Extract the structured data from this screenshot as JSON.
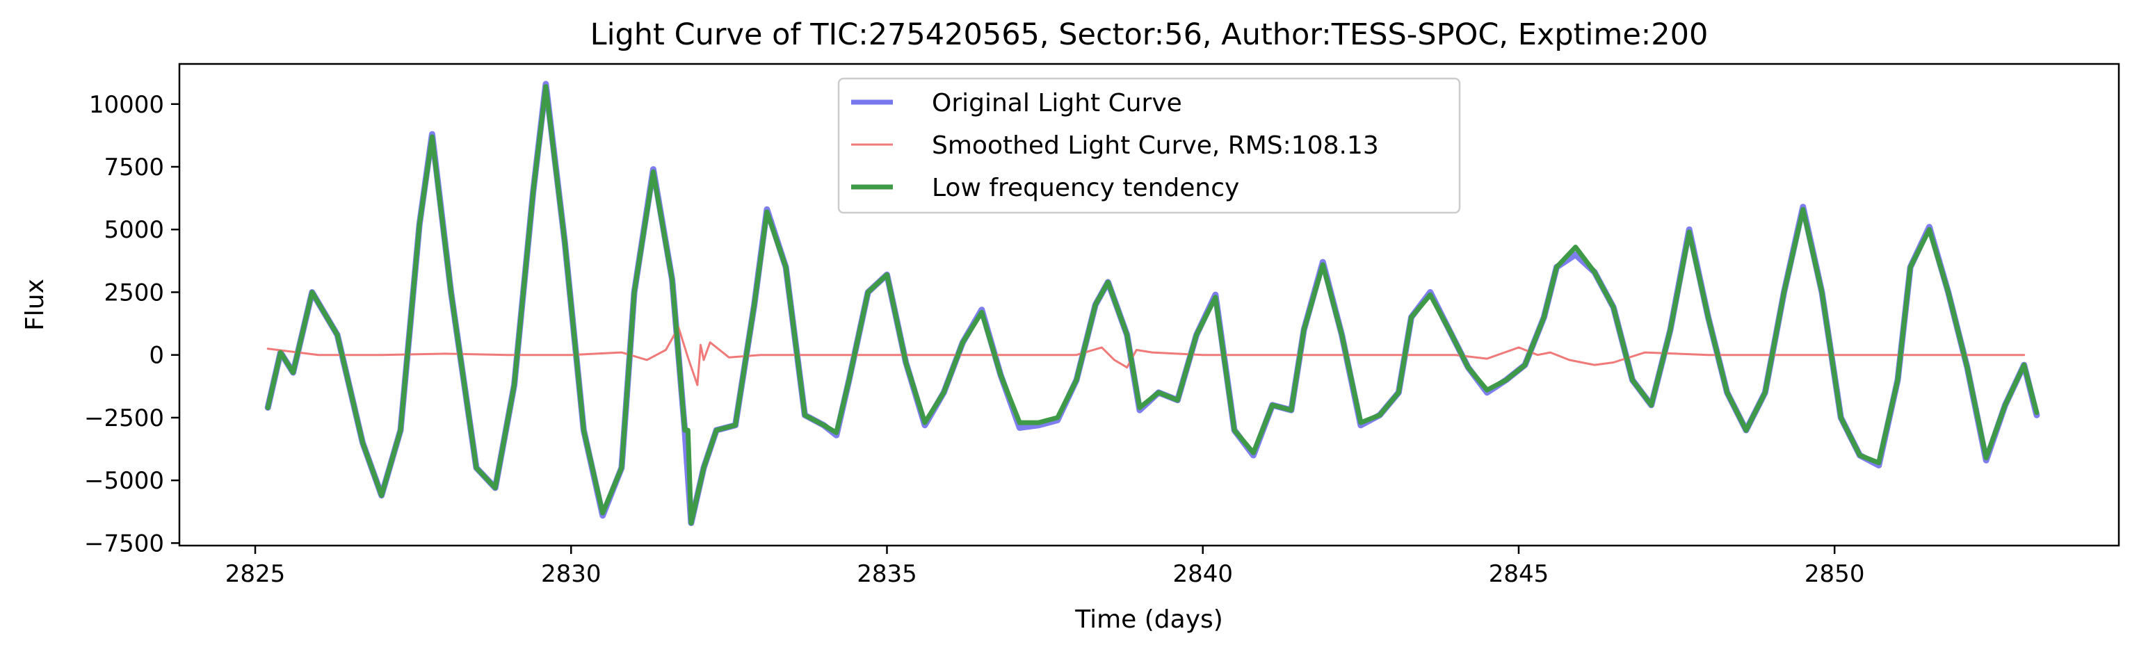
{
  "chart_data": {
    "type": "line",
    "title": "Light Curve of TIC:275420565, Sector:56, Author:TESS-SPOC, Exptime:200",
    "xlabel": "Time (days)",
    "ylabel": "Flux",
    "xlim": [
      2823.8,
      2854.5
    ],
    "ylim": [
      -7600,
      11600
    ],
    "xticks": [
      2825,
      2830,
      2835,
      2840,
      2845,
      2850
    ],
    "yticks": [
      -7500,
      -5000,
      -2500,
      0,
      2500,
      5000,
      7500,
      10000
    ],
    "grid": false,
    "legend_position": "upper-center",
    "colors": {
      "original": "#7777ee",
      "smoothed": "#f07a7a",
      "tendency": "#3f9a48"
    },
    "series": [
      {
        "name": "Original Light Curve",
        "x": [
          2825.2,
          2825.4,
          2825.6,
          2825.9,
          2826.3,
          2826.7,
          2827.0,
          2827.3,
          2827.6,
          2827.8,
          2828.1,
          2828.5,
          2828.8,
          2829.1,
          2829.4,
          2829.6,
          2829.9,
          2830.2,
          2830.5,
          2830.8,
          2831.0,
          2831.3,
          2831.6,
          2831.8,
          2831.9,
          2832.1,
          2832.3,
          2832.6,
          2832.9,
          2833.1,
          2833.4,
          2833.7,
          2834.0,
          2834.2,
          2834.4,
          2834.7,
          2835.0,
          2835.3,
          2835.6,
          2835.9,
          2836.2,
          2836.5,
          2836.8,
          2837.1,
          2837.4,
          2837.7,
          2838.0,
          2838.3,
          2838.5,
          2838.8,
          2839.0,
          2839.3,
          2839.6,
          2839.9,
          2840.2,
          2840.5,
          2840.8,
          2841.1,
          2841.4,
          2841.6,
          2841.9,
          2842.2,
          2842.5,
          2842.8,
          2843.1,
          2843.3,
          2843.6,
          2843.9,
          2844.2,
          2844.5,
          2844.8,
          2845.1,
          2845.4,
          2845.6,
          2845.9,
          2846.2,
          2846.5,
          2846.8,
          2847.1,
          2847.4,
          2847.7,
          2848.0,
          2848.3,
          2848.6,
          2848.9,
          2849.2,
          2849.5,
          2849.8,
          2850.1,
          2850.4,
          2850.7,
          2851.0,
          2851.2,
          2851.5,
          2851.8,
          2852.1,
          2852.4,
          2852.7,
          2853.0,
          2853.2
        ],
        "y": [
          -2100,
          100,
          -700,
          2500,
          800,
          -3500,
          -5600,
          -3000,
          5200,
          8800,
          2500,
          -4500,
          -5300,
          -1200,
          6500,
          10800,
          4500,
          -3000,
          -6400,
          -4500,
          2500,
          7400,
          3000,
          -3000,
          -6700,
          -4500,
          -3000,
          -2800,
          2000,
          5800,
          3500,
          -2400,
          -2800,
          -3200,
          -1000,
          2500,
          3200,
          -300,
          -2800,
          -1500,
          500,
          1800,
          -800,
          -2900,
          -2800,
          -2600,
          -1000,
          2000,
          2900,
          800,
          -2200,
          -1500,
          -1800,
          800,
          2400,
          -3000,
          -4000,
          -2000,
          -2200,
          1000,
          3700,
          800,
          -2800,
          -2400,
          -1500,
          1500,
          2500,
          1000,
          -500,
          -1500,
          -1000,
          -400,
          1500,
          3500,
          4000,
          3300,
          1900,
          -1000,
          -2000,
          1000,
          5000,
          1500,
          -1500,
          -3000,
          -1500,
          2500,
          5900,
          2500,
          -2500,
          -4000,
          -4400,
          -1000,
          3500,
          5100,
          2500,
          -500,
          -4200,
          -2000,
          -400,
          -2400
        ]
      },
      {
        "name": "Smoothed Light Curve, RMS:108.13",
        "x": [
          2825.2,
          2826.0,
          2827.0,
          2828.0,
          2829.0,
          2830.0,
          2830.8,
          2831.2,
          2831.5,
          2831.7,
          2831.85,
          2832.0,
          2832.05,
          2832.1,
          2832.2,
          2832.5,
          2833.0,
          2834.0,
          2835.0,
          2836.0,
          2837.0,
          2838.0,
          2838.4,
          2838.6,
          2838.8,
          2838.95,
          2839.2,
          2840.0,
          2841.0,
          2842.0,
          2843.0,
          2844.0,
          2844.5,
          2845.0,
          2845.3,
          2845.5,
          2845.8,
          2846.2,
          2846.5,
          2847.0,
          2848.0,
          2849.0,
          2850.0,
          2851.0,
          2852.0,
          2853.0
        ],
        "y": [
          250,
          0,
          0,
          50,
          0,
          0,
          100,
          -200,
          200,
          1100,
          -100,
          -1200,
          400,
          -200,
          500,
          -100,
          0,
          0,
          0,
          0,
          0,
          0,
          300,
          -200,
          -500,
          200,
          100,
          0,
          0,
          0,
          0,
          0,
          -150,
          300,
          0,
          100,
          -200,
          -400,
          -300,
          100,
          0,
          0,
          0,
          0,
          0,
          0
        ]
      },
      {
        "name": "Low frequency tendency",
        "x": [
          2825.2,
          2825.4,
          2825.6,
          2825.9,
          2826.3,
          2826.7,
          2827.0,
          2827.3,
          2827.6,
          2827.8,
          2828.1,
          2828.5,
          2828.8,
          2829.1,
          2829.4,
          2829.6,
          2829.9,
          2830.2,
          2830.5,
          2830.8,
          2831.0,
          2831.3,
          2831.6,
          2831.8,
          2831.85,
          2831.9,
          2832.1,
          2832.3,
          2832.6,
          2832.9,
          2833.1,
          2833.4,
          2833.7,
          2834.0,
          2834.2,
          2834.4,
          2834.7,
          2835.0,
          2835.3,
          2835.6,
          2835.9,
          2836.2,
          2836.5,
          2836.8,
          2837.1,
          2837.4,
          2837.7,
          2838.0,
          2838.3,
          2838.5,
          2838.8,
          2839.0,
          2839.3,
          2839.6,
          2839.9,
          2840.2,
          2840.5,
          2840.8,
          2841.1,
          2841.4,
          2841.6,
          2841.9,
          2842.2,
          2842.5,
          2842.8,
          2843.1,
          2843.3,
          2843.6,
          2843.9,
          2844.2,
          2844.5,
          2844.8,
          2845.1,
          2845.4,
          2845.6,
          2845.9,
          2846.2,
          2846.5,
          2846.8,
          2847.1,
          2847.4,
          2847.7,
          2848.0,
          2848.3,
          2848.6,
          2848.9,
          2849.2,
          2849.5,
          2849.8,
          2850.1,
          2850.4,
          2850.7,
          2851.0,
          2851.2,
          2851.5,
          2851.8,
          2852.1,
          2852.4,
          2852.7,
          2853.0,
          2853.2
        ],
        "y": [
          -2100,
          100,
          -700,
          2500,
          800,
          -3500,
          -5600,
          -3000,
          5200,
          8700,
          2500,
          -4500,
          -5300,
          -1200,
          6500,
          10700,
          4500,
          -3000,
          -6300,
          -4500,
          2500,
          7300,
          3000,
          -3000,
          -3000,
          -6700,
          -4500,
          -3000,
          -2800,
          2000,
          5700,
          3500,
          -2400,
          -2800,
          -3100,
          -1000,
          2500,
          3200,
          -300,
          -2700,
          -1500,
          500,
          1700,
          -800,
          -2700,
          -2700,
          -2500,
          -1000,
          2000,
          2900,
          800,
          -2100,
          -1500,
          -1800,
          800,
          2300,
          -3000,
          -3900,
          -2000,
          -2200,
          1000,
          3600,
          800,
          -2700,
          -2400,
          -1500,
          1500,
          2400,
          1000,
          -500,
          -1400,
          -1000,
          -400,
          1500,
          3500,
          4300,
          3300,
          1900,
          -1000,
          -2000,
          1000,
          4900,
          1500,
          -1500,
          -3000,
          -1500,
          2500,
          5800,
          2500,
          -2500,
          -4000,
          -4300,
          -1000,
          3500,
          5000,
          2500,
          -500,
          -4100,
          -2000,
          -400,
          -2300
        ]
      }
    ]
  }
}
